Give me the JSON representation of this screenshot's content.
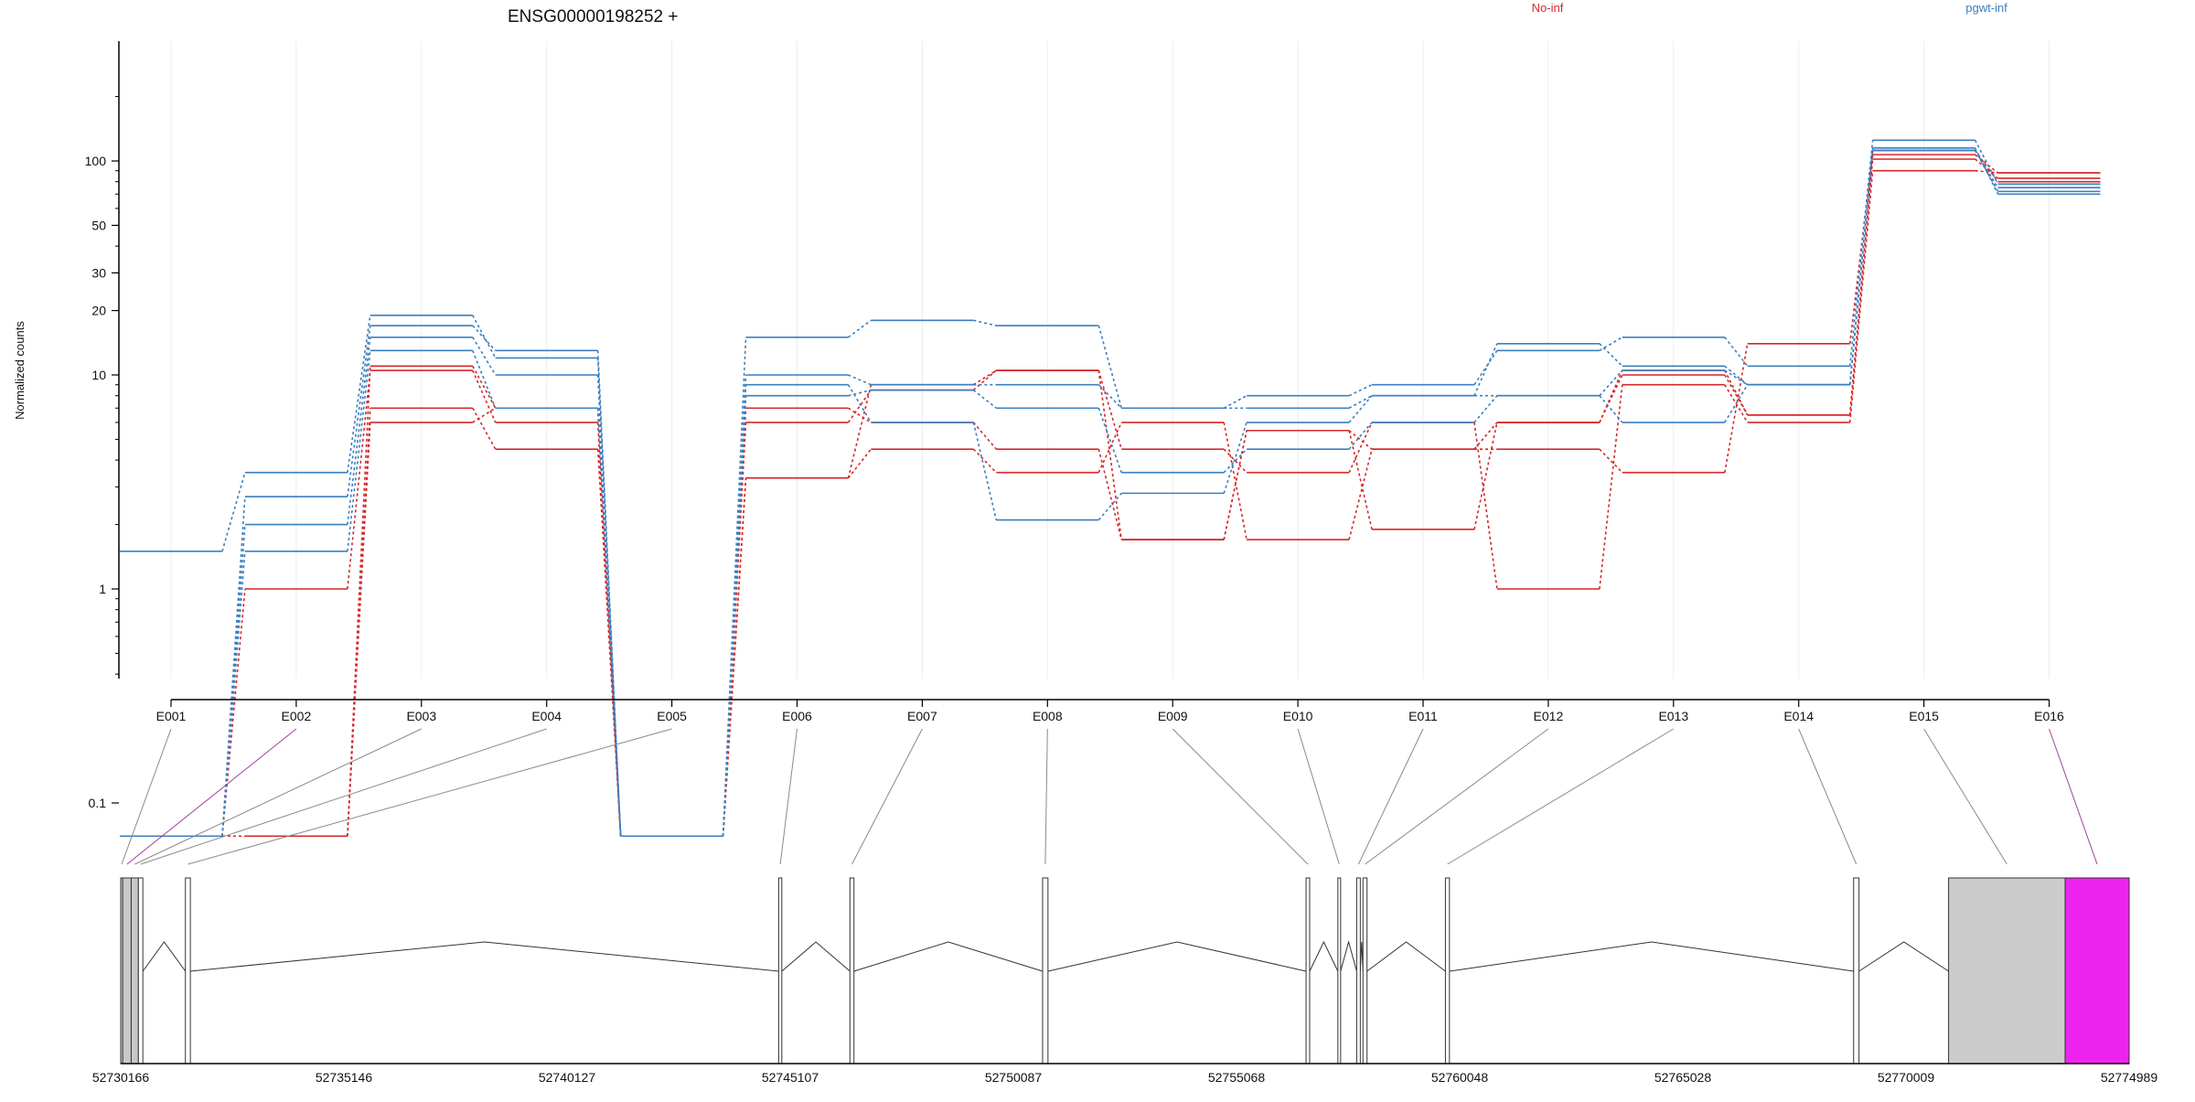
{
  "chart_data": {
    "type": "line",
    "title": "ENSG00000198252 +",
    "ylabel": "Normalized counts",
    "xlabel": "",
    "y_scale": "log",
    "y_ticks": [
      0.1,
      1,
      10,
      20,
      30,
      50,
      100
    ],
    "y_tick_labels": [
      "0.1",
      "1",
      "10",
      "20",
      "30",
      "50",
      "100"
    ],
    "categories": [
      "E001",
      "E002",
      "E003",
      "E004",
      "E005",
      "E006",
      "E007",
      "E008",
      "E009",
      "E010",
      "E011",
      "E012",
      "E013",
      "E014",
      "E015",
      "E016"
    ],
    "legend": [
      {
        "label": "No-inf",
        "color": "#d62728"
      },
      {
        "label": "pgwt-inf",
        "color": "#3a7fc0"
      }
    ],
    "grid": "vertical",
    "series": [
      {
        "group": "No-inf",
        "color": "#d62728",
        "values": [
          0.07,
          0.07,
          11,
          7,
          0.07,
          3.3,
          9,
          10.5,
          1.7,
          5.5,
          4.5,
          6,
          10.5,
          6.5,
          107,
          88
        ]
      },
      {
        "group": "No-inf",
        "color": "#d62728",
        "values": [
          0.07,
          1.0,
          10.5,
          6,
          0.07,
          7,
          6,
          4.5,
          1.7,
          5.5,
          1.9,
          6,
          10,
          6.5,
          102,
          83
        ]
      },
      {
        "group": "No-inf",
        "color": "#d62728",
        "values": [
          0.07,
          0.07,
          7,
          4.5,
          0.07,
          3.3,
          4.5,
          3.5,
          6,
          1.7,
          4.5,
          4.5,
          3.5,
          14,
          112,
          80
        ]
      },
      {
        "group": "No-inf",
        "color": "#d62728",
        "values": [
          0.07,
          0.07,
          6,
          7,
          0.07,
          6,
          8.5,
          10.5,
          4.5,
          3.5,
          6,
          1.0,
          9,
          6,
          90,
          88
        ]
      },
      {
        "group": "pgwt-inf",
        "color": "#3a7fc0",
        "values": [
          1.5,
          3.5,
          19,
          12,
          0.07,
          15,
          18,
          17,
          7,
          8,
          9,
          13,
          15,
          11,
          125,
          78
        ]
      },
      {
        "group": "pgwt-inf",
        "color": "#3a7fc0",
        "values": [
          0.07,
          2.7,
          17,
          13,
          0.07,
          10,
          9,
          9,
          7,
          7,
          8,
          14,
          11,
          9,
          112,
          75
        ]
      },
      {
        "group": "pgwt-inf",
        "color": "#3a7fc0",
        "values": [
          0.07,
          2.0,
          15,
          10,
          0.07,
          8,
          8.5,
          7,
          3.5,
          4.5,
          6,
          8,
          6,
          9,
          112,
          72
        ]
      },
      {
        "group": "pgwt-inf",
        "color": "#3a7fc0",
        "values": [
          0.07,
          1.5,
          13,
          7,
          0.07,
          9,
          6,
          2.1,
          2.8,
          6,
          8,
          8,
          10.5,
          9,
          115,
          70
        ]
      }
    ],
    "gene_model": {
      "coordinate_labels": [
        "52730166",
        "52735146",
        "52740127",
        "52745107",
        "52750087",
        "52755068",
        "52760048",
        "52765028",
        "52770009",
        "52774989"
      ],
      "coordinate_range": [
        52730166,
        52774989
      ],
      "exons": [
        {
          "id": "E001",
          "start": 52730166,
          "end": 52730210,
          "fill": "#c8c8c8"
        },
        {
          "id": "E002",
          "start": 52730210,
          "end": 52730400,
          "fill": "#c8c8c8"
        },
        {
          "id": "E003",
          "start": 52730400,
          "end": 52730560,
          "fill": "#c8c8c8"
        },
        {
          "id": "E004",
          "start": 52730560,
          "end": 52730660,
          "fill": "#ffffff"
        },
        {
          "id": "E005",
          "start": 52731610,
          "end": 52731720,
          "fill": "#ffffff"
        },
        {
          "id": "E006",
          "start": 52744850,
          "end": 52744920,
          "fill": "#ffffff"
        },
        {
          "id": "E007",
          "start": 52746440,
          "end": 52746530,
          "fill": "#ffffff"
        },
        {
          "id": "E008",
          "start": 52750740,
          "end": 52750860,
          "fill": "#ffffff"
        },
        {
          "id": "E009",
          "start": 52756620,
          "end": 52756700,
          "fill": "#ffffff"
        },
        {
          "id": "E010",
          "start": 52757330,
          "end": 52757390,
          "fill": "#ffffff"
        },
        {
          "id": "E011",
          "start": 52757750,
          "end": 52757830,
          "fill": "#ffffff"
        },
        {
          "id": "E012",
          "start": 52757890,
          "end": 52757980,
          "fill": "#ffffff"
        },
        {
          "id": "E013",
          "start": 52759730,
          "end": 52759820,
          "fill": "#ffffff"
        },
        {
          "id": "E014",
          "start": 52768840,
          "end": 52768960,
          "fill": "#ffffff"
        },
        {
          "id": "E015",
          "start": 52770960,
          "end": 52773560,
          "fill": "#cccccc"
        },
        {
          "id": "E016",
          "start": 52773560,
          "end": 52774989,
          "fill": "#ee22ee"
        }
      ]
    }
  }
}
